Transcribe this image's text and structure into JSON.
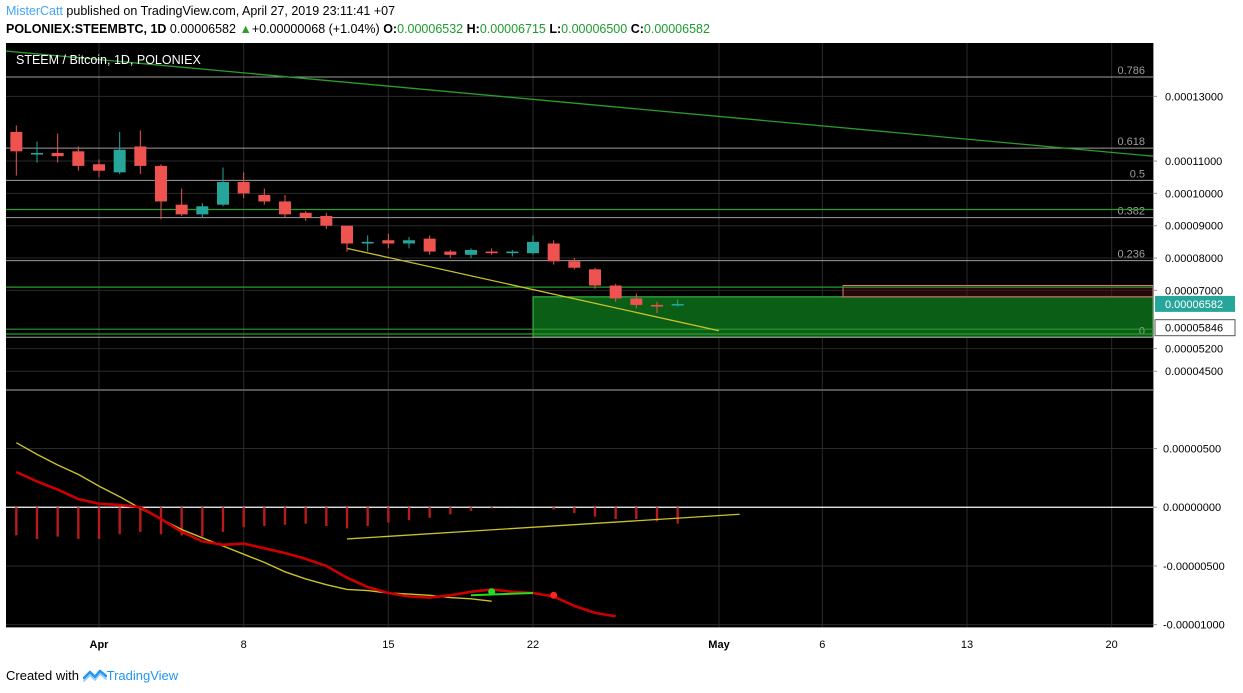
{
  "header": {
    "author": "MisterCatt",
    "published_text": " published on TradingView.com, April 27, 2019 23:11:41 +07",
    "symbol": "POLONIEX:STEEMBTC, 1D",
    "last": "0.00006582",
    "arrow": "▲",
    "change": "+0.00000068 (+1.04%)",
    "o_label": "O:",
    "o": "0.00006532",
    "h_label": "H:",
    "h": "0.00006715",
    "l_label": "L:",
    "l": "0.00006500",
    "c_label": "C:",
    "c": "0.00006582"
  },
  "footer": {
    "created_with": "Created with",
    "brand": "TradingView"
  },
  "colors": {
    "up": "#26a69a",
    "down": "#ef5350",
    "macd_line": "#cc0000",
    "signal_line": "#c9c22b",
    "hist": "#b71c1c",
    "trend_green": "#2a9d2a",
    "box_fill": "#0b5e16",
    "box_border": "#43c74f",
    "background": "#000000",
    "grid": "#2a2a2a",
    "fib_line": "#9e9e9e",
    "axis_text": "#000000"
  },
  "chart_data": {
    "type": "candlestick",
    "title": "STEEM / Bitcoin, 1D, POLONIEX",
    "ylim": [
      3.95e-05,
      0.0001465
    ],
    "xlim": [
      "2019-03-27T12:00",
      "2019-05-22"
    ],
    "x_ticks": [
      "2019-04-01",
      "2019-04-08",
      "2019-04-15",
      "2019-04-22",
      "2019-05-01",
      "2019-05-06",
      "2019-05-13",
      "2019-05-20"
    ],
    "x_tick_labels": [
      "Apr",
      "8",
      "15",
      "22",
      "May",
      "6",
      "13",
      "20"
    ],
    "y_ticks": [
      0.00013,
      0.00011,
      0.0001,
      9e-05,
      8e-05,
      7e-05,
      5.2e-05,
      4.5e-05
    ],
    "y_tick_labels": [
      "0.00013000",
      "0.00011000",
      "0.00010000",
      "0.00009000",
      "0.00008000",
      "0.00007000",
      "0.00005200",
      "0.00004500"
    ],
    "price_tag": {
      "value": 6.582e-05,
      "label": "0.00006582"
    },
    "level_tag": {
      "value": 5.846e-05,
      "label": "0.00005846"
    },
    "candles": [
      {
        "date": "2019-03-28",
        "o": 0.000119,
        "h": 0.000121,
        "l": 0.0001055,
        "c": 0.000113
      },
      {
        "date": "2019-03-29",
        "o": 0.000112,
        "h": 0.000116,
        "l": 0.0001095,
        "c": 0.0001125
      },
      {
        "date": "2019-03-30",
        "o": 0.0001125,
        "h": 0.0001185,
        "l": 0.0001095,
        "c": 0.0001115
      },
      {
        "date": "2019-03-31",
        "o": 0.000113,
        "h": 0.0001145,
        "l": 0.000107,
        "c": 0.0001085
      },
      {
        "date": "2019-04-01",
        "o": 0.000109,
        "h": 0.0001105,
        "l": 0.000105,
        "c": 0.000107
      },
      {
        "date": "2019-04-02",
        "o": 0.0001065,
        "h": 0.000119,
        "l": 0.000106,
        "c": 0.0001135
      },
      {
        "date": "2019-04-03",
        "o": 0.0001145,
        "h": 0.0001195,
        "l": 0.000106,
        "c": 0.0001085
      },
      {
        "date": "2019-04-04",
        "o": 0.0001085,
        "h": 0.000109,
        "l": 9.2e-05,
        "c": 9.75e-05
      },
      {
        "date": "2019-04-05",
        "o": 9.65e-05,
        "h": 0.0001015,
        "l": 9.3e-05,
        "c": 9.35e-05
      },
      {
        "date": "2019-04-06",
        "o": 9.35e-05,
        "h": 9.7e-05,
        "l": 9.25e-05,
        "c": 9.6e-05
      },
      {
        "date": "2019-04-07",
        "o": 9.65e-05,
        "h": 0.000108,
        "l": 9.6e-05,
        "c": 0.0001035
      },
      {
        "date": "2019-04-08",
        "o": 0.0001035,
        "h": 0.0001065,
        "l": 9.85e-05,
        "c": 0.0001
      },
      {
        "date": "2019-04-09",
        "o": 9.95e-05,
        "h": 0.0001015,
        "l": 9.65e-05,
        "c": 9.75e-05
      },
      {
        "date": "2019-04-10",
        "o": 9.75e-05,
        "h": 9.95e-05,
        "l": 9.25e-05,
        "c": 9.35e-05
      },
      {
        "date": "2019-04-11",
        "o": 9.4e-05,
        "h": 9.45e-05,
        "l": 9.15e-05,
        "c": 9.25e-05
      },
      {
        "date": "2019-04-12",
        "o": 9.3e-05,
        "h": 9.4e-05,
        "l": 8.9e-05,
        "c": 9e-05
      },
      {
        "date": "2019-04-13",
        "o": 9e-05,
        "h": 9e-05,
        "l": 8.2e-05,
        "c": 8.45e-05
      },
      {
        "date": "2019-04-14",
        "o": 8.45e-05,
        "h": 8.7e-05,
        "l": 8.2e-05,
        "c": 8.5e-05
      },
      {
        "date": "2019-04-15",
        "o": 8.55e-05,
        "h": 8.75e-05,
        "l": 8.3e-05,
        "c": 8.45e-05
      },
      {
        "date": "2019-04-16",
        "o": 8.45e-05,
        "h": 8.65e-05,
        "l": 8.3e-05,
        "c": 8.55e-05
      },
      {
        "date": "2019-04-17",
        "o": 8.6e-05,
        "h": 8.7e-05,
        "l": 8.1e-05,
        "c": 8.2e-05
      },
      {
        "date": "2019-04-18",
        "o": 8.2e-05,
        "h": 8.25e-05,
        "l": 8e-05,
        "c": 8.1e-05
      },
      {
        "date": "2019-04-19",
        "o": 8.1e-05,
        "h": 8.3e-05,
        "l": 8e-05,
        "c": 8.25e-05
      },
      {
        "date": "2019-04-20",
        "o": 8.2e-05,
        "h": 8.3e-05,
        "l": 8.1e-05,
        "c": 8.15e-05
      },
      {
        "date": "2019-04-21",
        "o": 8.15e-05,
        "h": 8.25e-05,
        "l": 8.05e-05,
        "c": 8.2e-05
      },
      {
        "date": "2019-04-22",
        "o": 8.15e-05,
        "h": 8.7e-05,
        "l": 8.1e-05,
        "c": 8.5e-05
      },
      {
        "date": "2019-04-23",
        "o": 8.45e-05,
        "h": 8.55e-05,
        "l": 7.8e-05,
        "c": 7.9e-05
      },
      {
        "date": "2019-04-24",
        "o": 7.9e-05,
        "h": 8e-05,
        "l": 7.65e-05,
        "c": 7.7e-05
      },
      {
        "date": "2019-04-25",
        "o": 7.65e-05,
        "h": 7.7e-05,
        "l": 7.05e-05,
        "c": 7.15e-05
      },
      {
        "date": "2019-04-26",
        "o": 7.15e-05,
        "h": 7.2e-05,
        "l": 6.65e-05,
        "c": 6.75e-05
      },
      {
        "date": "2019-04-27",
        "o": 6.75e-05,
        "h": 6.9e-05,
        "l": 6.45e-05,
        "c": 6.55e-05
      },
      {
        "date": "2019-04-28",
        "o": 6.55e-05,
        "h": 6.65e-05,
        "l": 6.3e-05,
        "c": 6.5e-05
      },
      {
        "date": "2019-04-29",
        "o": 6.53e-05,
        "h": 6.72e-05,
        "l": 6.5e-05,
        "c": 6.58e-05
      }
    ],
    "fib_levels": [
      {
        "label": "0.786",
        "value": 0.000136
      },
      {
        "label": "0.618",
        "value": 0.000114
      },
      {
        "label": "0.5",
        "value": 0.000104
      },
      {
        "label": "0.382",
        "value": 9.25e-05
      },
      {
        "label": "0.236",
        "value": 7.92e-05
      },
      {
        "label": "0",
        "value": 5.55e-05
      }
    ],
    "horizontal_lines": [
      9.5e-05,
      7.1e-05,
      5.8e-05,
      5.65e-05
    ],
    "trendlines": [
      {
        "color": "green",
        "from": [
          "2019-03-27T12:00",
          0.000144
        ],
        "to": [
          "2019-05-22",
          0.0001115
        ]
      },
      {
        "color": "yellow",
        "from": [
          "2019-04-13",
          8.3e-05
        ],
        "to": [
          "2019-05-01",
          5.75e-05
        ]
      }
    ],
    "zone": {
      "from": "2019-04-22",
      "to": "2019-05-22",
      "top": 6.8e-05,
      "bottom": 5.55e-05
    },
    "zone_red": {
      "from": "2019-05-07",
      "to": "2019-05-22",
      "top": 7.15e-05,
      "bottom": 6.8e-05
    },
    "indicator": {
      "ylim": [
        -1.02e-05,
        9.9e-06
      ],
      "y_ticks": [
        5e-06,
        0.0,
        -5e-06,
        -1e-05
      ],
      "y_tick_labels": [
        "0.00000500",
        "0.00000000",
        "-0.00000500",
        "-0.00001000"
      ],
      "macd": [
        3e-06,
        2.2e-06,
        1.5e-06,
        7e-07,
        3e-07,
        2e-07,
        0.0,
        -1e-06,
        -2.1e-06,
        -2.9e-06,
        -3.2e-06,
        -3.1e-06,
        -3.5e-06,
        -3.9e-06,
        -4.4e-06,
        -5e-06,
        -6e-06,
        -6.8e-06,
        -7.3e-06,
        -7.6e-06,
        -7.7e-06,
        -7.5e-06,
        -7.2e-06,
        -7e-06,
        -7.2e-06,
        -7.3e-06,
        -7.6e-06,
        -8.4e-06,
        -9e-06,
        -9.3e-06
      ],
      "signal": [
        5.5e-06,
        4.5e-06,
        3.6e-06,
        2.8e-06,
        1.8e-06,
        9e-07,
        -1e-07,
        -1e-06,
        -1.9e-06,
        -2.6e-06,
        -3.3e-06,
        -4e-06,
        -4.7e-06,
        -5.5e-06,
        -6.1e-06,
        -6.6e-06,
        -7e-06,
        -7.1e-06,
        -7.3e-06,
        -7.4e-06,
        -7.5e-06,
        -7.7e-06,
        -7.8e-06,
        -8e-06
      ],
      "signal_start": "2019-03-28",
      "histogram": [
        -2.4e-06,
        -2.7e-06,
        -2.5e-06,
        -2.7e-06,
        -2.7e-06,
        -2.3e-06,
        -2.1e-06,
        -2.3e-06,
        -2.4e-06,
        -2.5e-06,
        -2.1e-06,
        -1.7e-06,
        -1.6e-06,
        -1.5e-06,
        -1.4e-06,
        -1.6e-06,
        -1.8e-06,
        -1.6e-06,
        -1.3e-06,
        -1.1e-06,
        -9e-07,
        -6e-07,
        -3e-07,
        -1e-07,
        1e-07,
        0.0,
        -2e-07,
        -5e-07,
        -8e-07,
        -1e-06,
        -1e-06,
        -1.2e-06,
        -1.4e-06
      ],
      "trendline": {
        "from": [
          "2019-04-13",
          -2.7e-06
        ],
        "to": [
          "2019-05-02",
          -6e-07
        ]
      },
      "cross_up": {
        "date": "2019-04-20",
        "value": -7.2e-06
      },
      "cross_down": {
        "date": "2019-04-23",
        "value": -7.5e-06
      }
    }
  }
}
